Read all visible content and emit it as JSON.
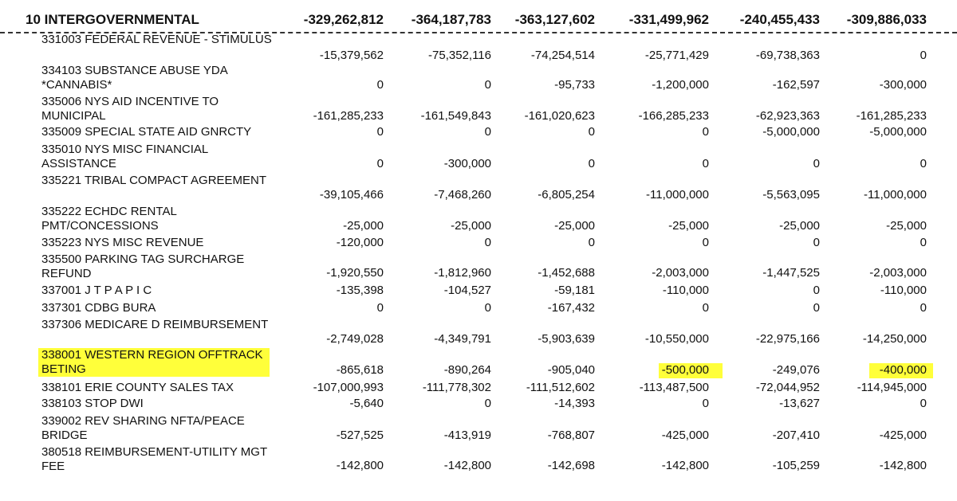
{
  "header": {
    "title": "10 INTERGOVERNMENTAL",
    "totals": [
      "-329,262,812",
      "-364,187,783",
      "-363,127,602",
      "-331,499,962",
      "-240,455,433",
      "-309,886,033"
    ]
  },
  "table": {
    "rows": [
      {
        "label": [
          "331003 FEDERAL REVENUE - STIMULUS"
        ],
        "values": [
          "-15,379,562",
          "-75,352,116",
          "-74,254,514",
          "-25,771,429",
          "-69,738,363",
          "0"
        ]
      },
      {
        "label": [
          "334103 SUBSTANCE ABUSE YDA",
          "*CANNABIS*"
        ],
        "values": [
          "0",
          "0",
          "-95,733",
          "-1,200,000",
          "-162,597",
          "-300,000"
        ]
      },
      {
        "label": [
          "335006 NYS AID INCENTIVE TO",
          "MUNICIPAL"
        ],
        "values": [
          "-161,285,233",
          "-161,549,843",
          "-161,020,623",
          "-166,285,233",
          "-62,923,363",
          "-161,285,233"
        ]
      },
      {
        "label": [
          "335009 SPECIAL STATE AID GNRCTY"
        ],
        "values": [
          "0",
          "0",
          "0",
          "0",
          "-5,000,000",
          "-5,000,000"
        ]
      },
      {
        "label": [
          "335010 NYS MISC FINANCIAL",
          "ASSISTANCE"
        ],
        "values": [
          "0",
          "-300,000",
          "0",
          "0",
          "0",
          "0"
        ]
      },
      {
        "label": [
          "335221 TRIBAL COMPACT AGREEMENT"
        ],
        "values": [
          "-39,105,466",
          "-7,468,260",
          "-6,805,254",
          "-11,000,000",
          "-5,563,095",
          "-11,000,000"
        ]
      },
      {
        "label": [
          "335222 ECHDC RENTAL",
          "PMT/CONCESSIONS"
        ],
        "values": [
          "-25,000",
          "-25,000",
          "-25,000",
          "-25,000",
          "-25,000",
          "-25,000"
        ]
      },
      {
        "label": [
          "335223 NYS MISC REVENUE"
        ],
        "values": [
          "-120,000",
          "0",
          "0",
          "0",
          "0",
          "0"
        ]
      },
      {
        "label": [
          "335500 PARKING TAG SURCHARGE",
          "REFUND"
        ],
        "values": [
          "-1,920,550",
          "-1,812,960",
          "-1,452,688",
          "-2,003,000",
          "-1,447,525",
          "-2,003,000"
        ]
      },
      {
        "label": [
          "337001 J T P A P I C"
        ],
        "values": [
          "-135,398",
          "-104,527",
          "-59,181",
          "-110,000",
          "0",
          "-110,000"
        ]
      },
      {
        "label": [
          "337301 CDBG BURA"
        ],
        "values": [
          "0",
          "0",
          "-167,432",
          "0",
          "0",
          "0"
        ]
      },
      {
        "label": [
          "337306 MEDICARE D REIMBURSEMENT"
        ],
        "values": [
          "-2,749,028",
          "-4,349,791",
          "-5,903,639",
          "-10,550,000",
          "-22,975,166",
          "-14,250,000"
        ]
      },
      {
        "label": [
          "338001 WESTERN REGION OFFTRACK",
          "BETING"
        ],
        "values": [
          "-865,618",
          "-890,264",
          "-905,040",
          "-500,000",
          "-249,076",
          "-400,000"
        ]
      },
      {
        "label": [
          "338101 ERIE COUNTY SALES TAX"
        ],
        "values": [
          "-107,000,993",
          "-111,778,302",
          "-111,512,602",
          "-113,487,500",
          "-72,044,952",
          "-114,945,000"
        ]
      },
      {
        "label": [
          "338103 STOP DWI"
        ],
        "values": [
          "-5,640",
          "0",
          "-14,393",
          "0",
          "-13,627",
          "0"
        ]
      },
      {
        "label": [
          "339002 REV SHARING NFTA/PEACE",
          "BRIDGE"
        ],
        "values": [
          "-527,525",
          "-413,919",
          "-768,807",
          "-425,000",
          "-207,410",
          "-425,000"
        ]
      },
      {
        "label": [
          "380518 REIMBURSEMENT-UTILITY MGT",
          "FEE"
        ],
        "values": [
          "-142,800",
          "-142,800",
          "-142,698",
          "-142,800",
          "-105,259",
          "-142,800"
        ]
      }
    ]
  }
}
